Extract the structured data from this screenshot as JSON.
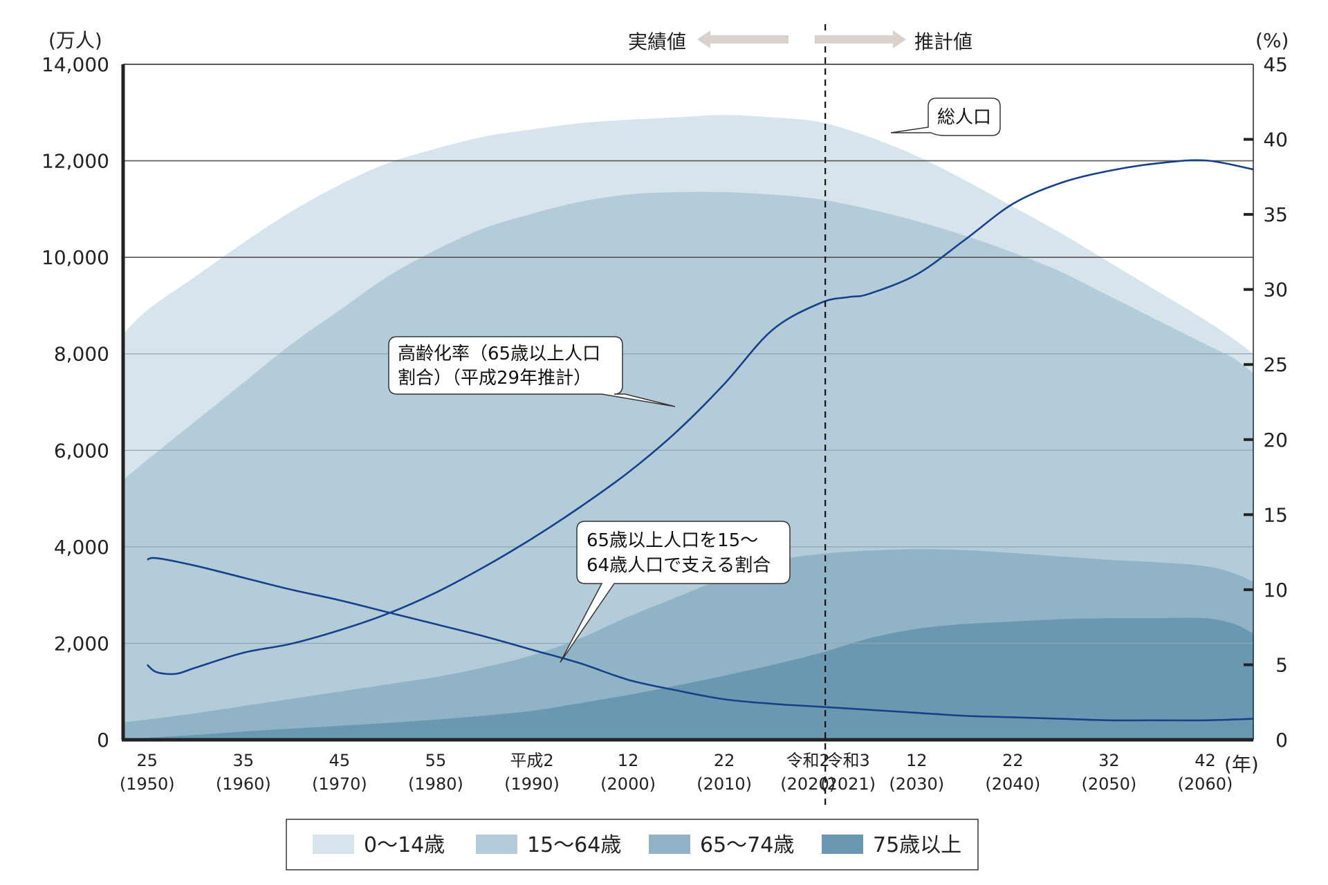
{
  "chart_data": {
    "type": "area",
    "y_left_unit": "(万人)",
    "y_right_unit": "(%)",
    "x_unit": "(年)",
    "ylim_left": [
      0,
      14000
    ],
    "ylim_right": [
      0,
      45
    ],
    "yticks_left": [
      "0",
      "2,000",
      "4,000",
      "6,000",
      "8,000",
      "10,000",
      "12,000",
      "14,000"
    ],
    "yticks_right": [
      "0",
      "5",
      "10",
      "15",
      "20",
      "25",
      "30",
      "35",
      "40",
      "45"
    ],
    "x_ticks": [
      {
        "year": 1950,
        "label": "25",
        "sub": "(1950)"
      },
      {
        "year": 1960,
        "label": "35",
        "sub": "(1960)"
      },
      {
        "year": 1970,
        "label": "45",
        "sub": "(1970)"
      },
      {
        "year": 1980,
        "label": "55",
        "sub": "(1980)"
      },
      {
        "year": 1990,
        "label": "平成2",
        "sub": "(1990)"
      },
      {
        "year": 2000,
        "label": "12",
        "sub": "(2000)"
      },
      {
        "year": 2010,
        "label": "22",
        "sub": "(2010)"
      },
      {
        "year": 2020,
        "label": "令和2",
        "sub": "(2020)"
      },
      {
        "year": 2021,
        "label": "令和3",
        "sub": "(2021)"
      },
      {
        "year": 2030,
        "label": "12",
        "sub": "(2030)"
      },
      {
        "year": 2040,
        "label": "22",
        "sub": "(2040)"
      },
      {
        "year": 2050,
        "label": "32",
        "sub": "(2050)"
      },
      {
        "year": 2060,
        "label": "42",
        "sub": "(2060)"
      }
    ],
    "x_range": [
      1947.5,
      2065
    ],
    "divider_year": 2020.5,
    "era_labels": {
      "actual": "実績値",
      "projected": "推計値"
    },
    "years": [
      1947,
      1950,
      1955,
      1960,
      1965,
      1970,
      1975,
      1980,
      1985,
      1990,
      1995,
      2000,
      2005,
      2010,
      2015,
      2020,
      2025,
      2030,
      2035,
      2040,
      2045,
      2050,
      2055,
      2060,
      2063,
      2065
    ],
    "series": [
      {
        "name": "0〜14歳",
        "color": "#d7e4ec",
        "cumulative_top": [
          8300,
          8900,
          9600,
          10300,
          10950,
          11500,
          11950,
          12250,
          12500,
          12650,
          12780,
          12850,
          12900,
          12950,
          12900,
          12800,
          12500,
          12100,
          11600,
          11050,
          10500,
          9900,
          9300,
          8700,
          8300,
          8000
        ]
      },
      {
        "name": "15〜64歳",
        "color": "#b4cbd9",
        "cumulative_top": [
          5300,
          5800,
          6600,
          7400,
          8200,
          8900,
          9600,
          10150,
          10600,
          10900,
          11150,
          11300,
          11350,
          11350,
          11300,
          11200,
          11000,
          10750,
          10450,
          10100,
          9700,
          9200,
          8700,
          8200,
          7900,
          7600
        ]
      },
      {
        "name": "65〜74歳",
        "color": "#91b3c6",
        "cumulative_top": [
          350,
          420,
          550,
          700,
          850,
          1000,
          1150,
          1300,
          1500,
          1750,
          2100,
          2550,
          2950,
          3350,
          3700,
          3850,
          3920,
          3950,
          3930,
          3870,
          3800,
          3730,
          3680,
          3600,
          3450,
          3280
        ]
      },
      {
        "name": "75歳以上",
        "color": "#6998b0",
        "cumulative_top": [
          0,
          40,
          100,
          170,
          230,
          290,
          350,
          420,
          500,
          600,
          760,
          930,
          1120,
          1330,
          1550,
          1800,
          2100,
          2300,
          2400,
          2450,
          2500,
          2520,
          2520,
          2520,
          2400,
          2200
        ]
      }
    ],
    "lines": [
      {
        "name": "高齢化率（65歳以上人口割合）（平成29年推計）",
        "axis": "right",
        "x": [
          1950,
          1951,
          1953,
          1955,
          1960,
          1965,
          1970,
          1975,
          1980,
          1985,
          1990,
          1995,
          2000,
          2005,
          2010,
          2015,
          2020,
          2023,
          2025,
          2030,
          2035,
          2040,
          2045,
          2050,
          2055,
          2060,
          2065
        ],
        "y": [
          5.0,
          4.5,
          4.4,
          4.8,
          5.8,
          6.4,
          7.3,
          8.4,
          9.8,
          11.5,
          13.4,
          15.5,
          17.8,
          20.5,
          23.7,
          27.3,
          29.1,
          29.5,
          29.7,
          31.0,
          33.3,
          35.7,
          37.1,
          37.9,
          38.4,
          38.6,
          38.0
        ]
      },
      {
        "name": "65歳以上人口を15〜64歳人口で支える割合",
        "axis": "right",
        "x": [
          1950,
          1951,
          1955,
          1960,
          1965,
          1970,
          1975,
          1980,
          1985,
          1990,
          1995,
          2000,
          2005,
          2010,
          2015,
          2020,
          2025,
          2030,
          2035,
          2040,
          2045,
          2050,
          2055,
          2060,
          2065
        ],
        "y": [
          12.0,
          12.1,
          11.6,
          10.8,
          10.0,
          9.3,
          8.5,
          7.7,
          6.9,
          6.0,
          5.1,
          4.0,
          3.3,
          2.7,
          2.4,
          2.2,
          2.0,
          1.8,
          1.6,
          1.5,
          1.4,
          1.3,
          1.3,
          1.3,
          1.4
        ]
      }
    ],
    "annotations": [
      {
        "id": "total",
        "text": "総人口"
      },
      {
        "id": "aging",
        "lines": [
          "高齢化率（65歳以上人口",
          "割合）（平成29年推計）"
        ]
      },
      {
        "id": "support",
        "lines": [
          "65歳以上人口を15〜",
          "64歳人口で支える割合"
        ]
      }
    ]
  },
  "colors": {
    "line": "#16418a",
    "axis": "#222222",
    "grid_dark": "#555555",
    "grid_light": "#8fa6b6",
    "arrow": "#d9d2cc"
  }
}
